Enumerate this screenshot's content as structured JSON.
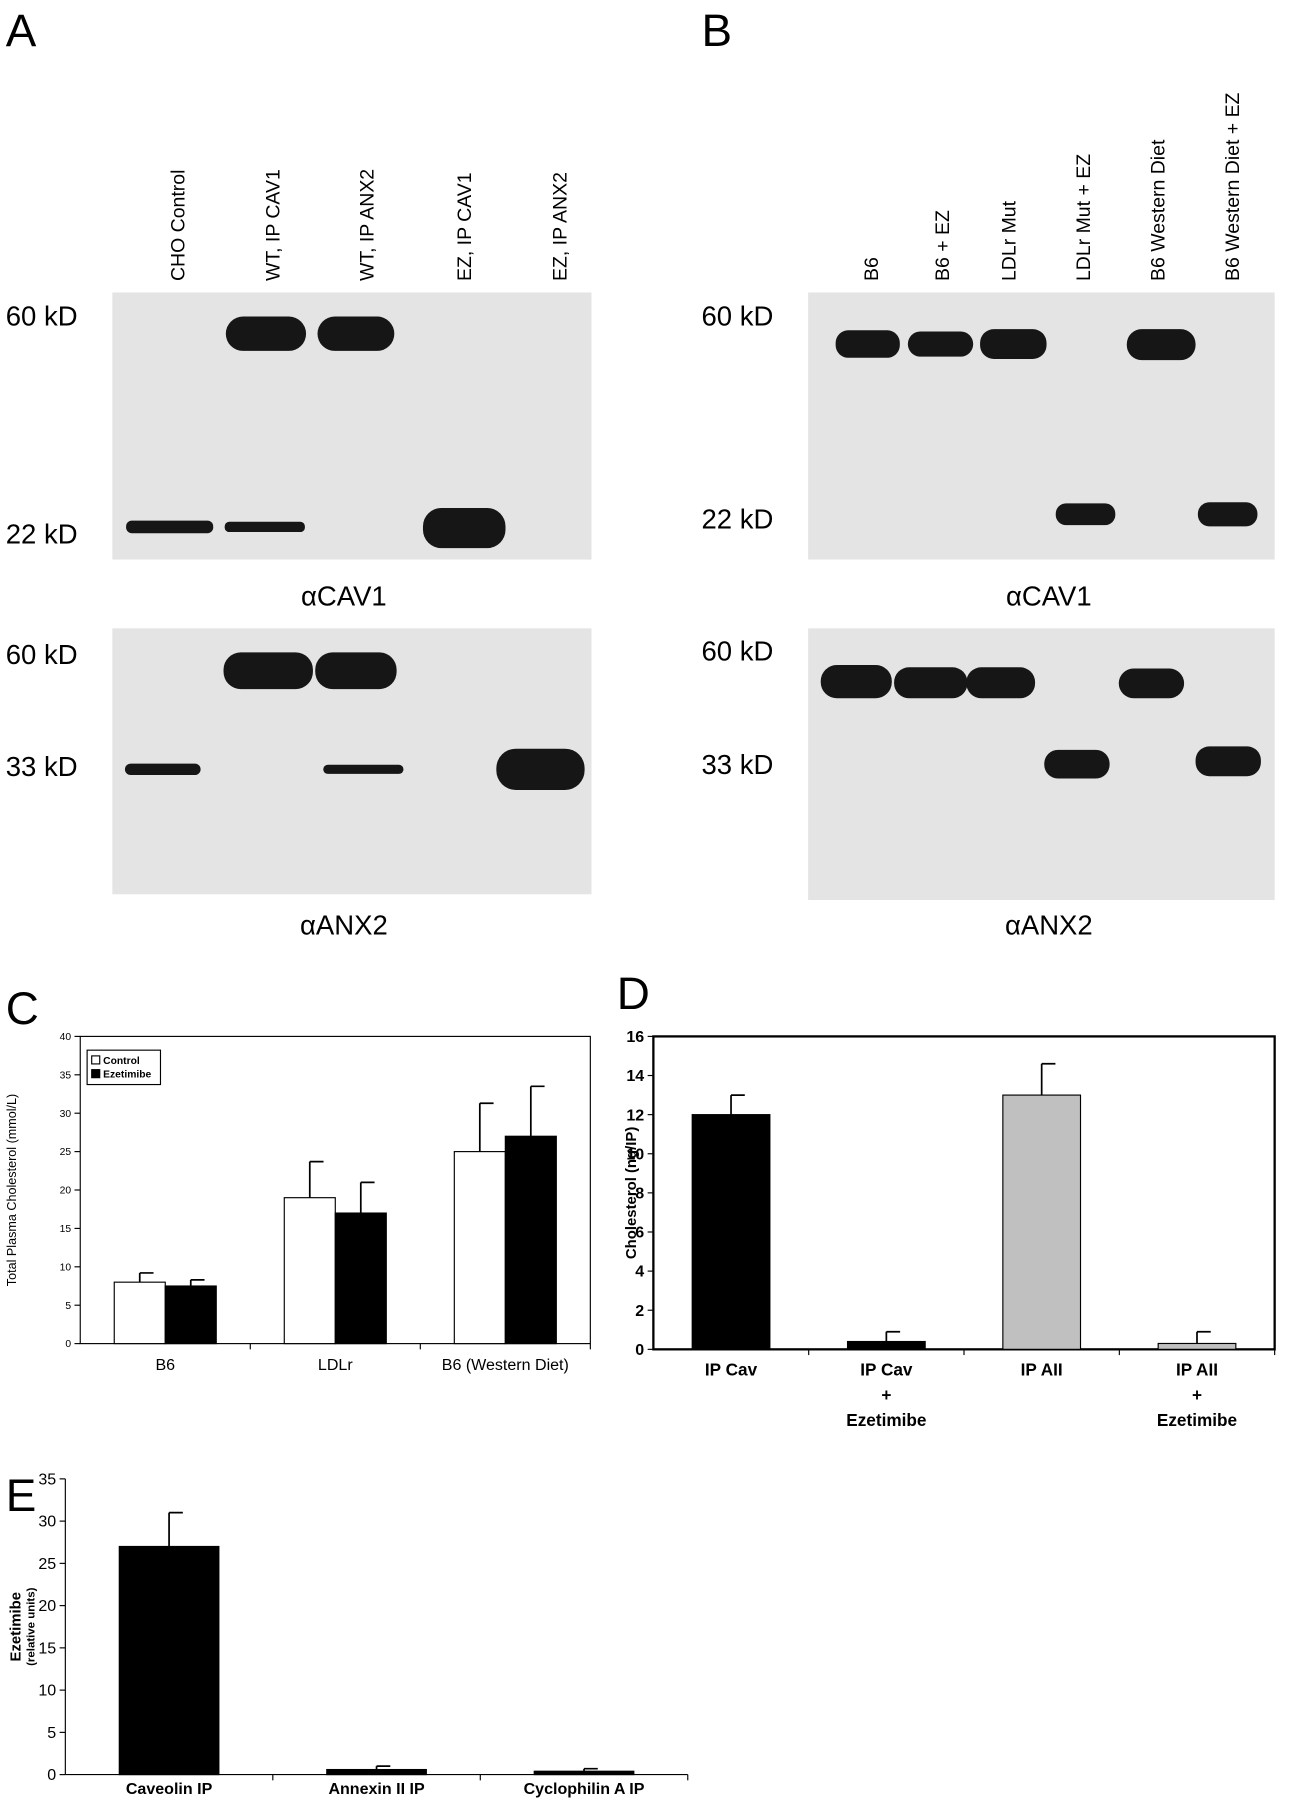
{
  "panels": {
    "A": {
      "label": "A",
      "lanes": [
        "CHO Control",
        "WT, IP CAV1",
        "WT, IP ANX2",
        "EZ, IP CAV1",
        "EZ, IP ANX2"
      ],
      "blots": [
        {
          "markers": [
            "60 kD",
            "22 kD"
          ],
          "antibody": "αCAV1"
        },
        {
          "markers": [
            "60 kD",
            "33 kD"
          ],
          "antibody": "αANX2"
        }
      ]
    },
    "B": {
      "label": "B",
      "lanes": [
        "B6",
        "B6 + EZ",
        "LDLr Mut",
        "LDLr Mut + EZ",
        "B6 Western Diet",
        "B6 Western Diet + EZ"
      ],
      "blots": [
        {
          "markers": [
            "60 kD",
            "22 kD"
          ],
          "antibody": "αCAV1"
        },
        {
          "markers": [
            "60 kD",
            "33 kD"
          ],
          "antibody": "αANX2"
        }
      ]
    }
  },
  "chart_data": [
    {
      "type": "bar",
      "panel": "C",
      "y_label": "Total Plasma Cholesterol (mmol/L)",
      "categories": [
        "B6",
        "LDLr",
        "B6 (Western Diet)"
      ],
      "series": [
        {
          "name": "Control",
          "color": "#ffffff",
          "values": [
            8,
            19,
            25
          ],
          "errors": [
            1.2,
            4.7,
            6.3
          ]
        },
        {
          "name": "Ezetimibe",
          "color": "#000000",
          "values": [
            7.5,
            17,
            27
          ],
          "errors": [
            0.8,
            4,
            6.5
          ]
        }
      ],
      "ylim": [
        0,
        40
      ],
      "yticks": [
        0,
        5,
        10,
        15,
        20,
        25,
        30,
        35,
        40
      ],
      "legend": "top-left"
    },
    {
      "type": "bar",
      "panel": "D",
      "y_label": "Cholesterol (ng/IP)",
      "categories": [
        [
          "IP Cav"
        ],
        [
          "IP Cav",
          "+",
          "Ezetimibe"
        ],
        [
          "IP AII"
        ],
        [
          "IP AII",
          "+",
          "Ezetimibe"
        ]
      ],
      "series": [
        {
          "colors": [
            "#000000",
            "#000000",
            "#c0c0c0",
            "#c0c0c0"
          ],
          "values": [
            12,
            0.4,
            13,
            0.3
          ],
          "errors": [
            1,
            0.5,
            1.6,
            0.6
          ]
        }
      ],
      "ylim": [
        0,
        16
      ],
      "yticks": [
        0,
        2,
        4,
        6,
        8,
        10,
        12,
        14,
        16
      ]
    },
    {
      "type": "bar",
      "panel": "E",
      "y_label": "Ezetimibe",
      "y_label_sub": "(relative units)",
      "categories": [
        "Caveolin IP",
        "Annexin II IP",
        "Cyclophilin A IP"
      ],
      "series": [
        {
          "color": "#000000",
          "values": [
            27,
            0.6,
            0.4
          ],
          "errors": [
            4,
            0.4,
            0.3
          ]
        }
      ],
      "ylim": [
        0,
        35
      ],
      "yticks": [
        0,
        5,
        10,
        15,
        20,
        25,
        30,
        35
      ]
    }
  ]
}
